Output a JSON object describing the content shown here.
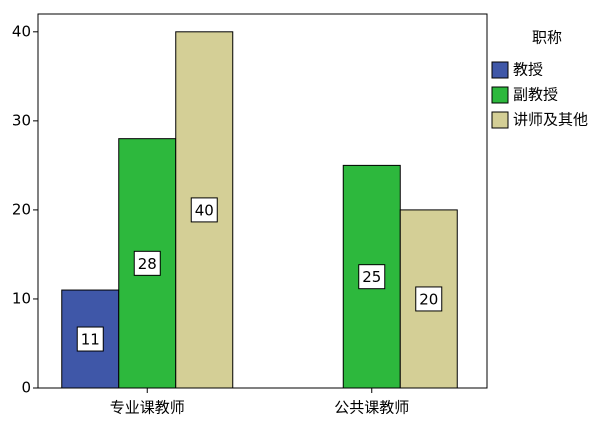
{
  "chart_data": {
    "type": "bar",
    "categories": [
      "专业课教师",
      "公共课教师"
    ],
    "legend_title": "职称",
    "series": [
      {
        "name": "教授",
        "color": "#3f57a8",
        "values": [
          11,
          null
        ]
      },
      {
        "name": "副教授",
        "color": "#2db83d",
        "values": [
          28,
          25
        ]
      },
      {
        "name": "讲师及其他",
        "color": "#d4cf96",
        "values": [
          40,
          20
        ]
      }
    ],
    "ylim": [
      0,
      42
    ],
    "yticks": [
      0,
      10,
      20,
      30,
      40
    ],
    "grid": false,
    "legend": "right"
  }
}
